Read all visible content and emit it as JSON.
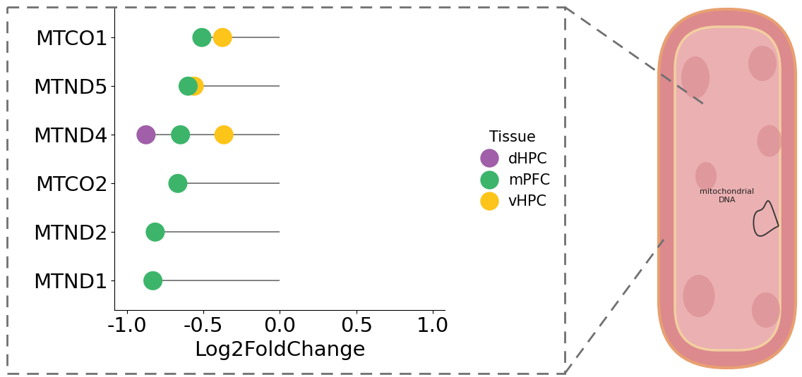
{
  "chart_data": {
    "type": "lollipop",
    "orientation": "horizontal",
    "categories": [
      "MTCO1",
      "MTND5",
      "MTND4",
      "MTCO2",
      "MTND2",
      "MTND1"
    ],
    "series": [
      {
        "name": "dHPC",
        "color": "#a05fa8",
        "values": [
          null,
          null,
          -0.875,
          null,
          null,
          null
        ]
      },
      {
        "name": "mPFC",
        "color": "#3cb56a",
        "values": [
          -0.51,
          -0.6,
          -0.65,
          -0.667,
          -0.815,
          -0.83
        ]
      },
      {
        "name": "vHPC",
        "color": "#fdc41a",
        "values": [
          -0.375,
          -0.56,
          -0.366,
          null,
          null,
          null
        ]
      }
    ],
    "x_label": "Log2FoldChange",
    "xlim": [
      -1.08,
      1.08
    ],
    "xticks": [
      -1.0,
      -0.5,
      0.0,
      0.5,
      1.0
    ],
    "legend": "center left",
    "legend_title": "Tissue",
    "annotation": "mitochondrial\nDNA",
    "grid": false
  }
}
